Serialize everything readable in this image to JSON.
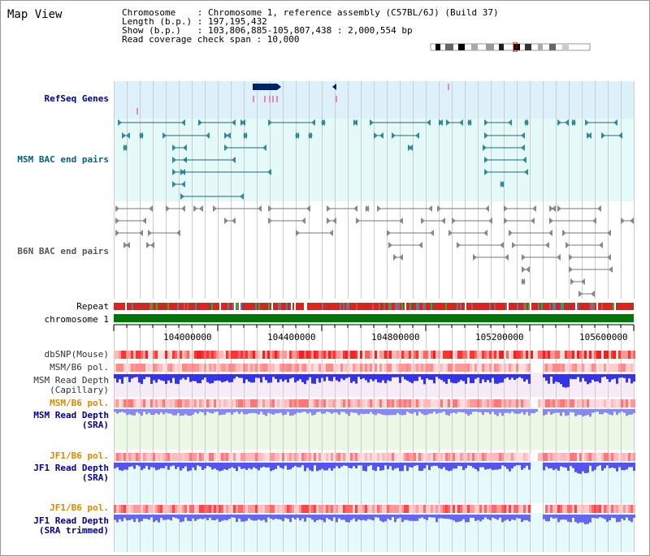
{
  "title": "Map View",
  "header": {
    "lines": [
      "Chromosome    : Chromosome 1, reference assembly (C57BL/6J) (Build 37)",
      "Length (b.p.) : 197,195,432",
      "Show (b.p.)   : 103,806,885-105,807,438 : 2,000,554 bp",
      "Read coverage check span : 10,000"
    ]
  },
  "tracks": {
    "refseq": "RefSeq Genes",
    "msm_bac": "MSM BAC end pairs",
    "b6n_bac": "B6N BAC end pairs",
    "repeat": "Repeat",
    "chromosome": "chromosome 1",
    "dbsnp": "dbSNP(Mouse)",
    "msm_b6_pol_1": "MSM/B6 pol.",
    "msm_depth_cap": "MSM Read Depth\n(Capillary)",
    "msm_b6_pol_2": "MSM/B6 pol.",
    "msm_depth_sra": "MSM Read Depth\n(SRA)",
    "jf1_b6_pol_1": "JF1/B6 pol.",
    "jf1_depth_sra": "JF1 Read Depth\n(SRA)",
    "jf1_b6_pol_2": "JF1/B6 pol.",
    "jf1_depth_trim": "JF1 Read Depth\n(SRA trimmed)"
  },
  "axis": {
    "ticks": [
      "104000000",
      "104400000",
      "104800000",
      "105200000",
      "105600000"
    ]
  },
  "colors": {
    "navy": "#000099",
    "teal": "#006677",
    "gray": "#555555",
    "orange": "#dd8800",
    "refseq_bg": "#ddf1fb",
    "msm_bg": "#e4faf9",
    "msm_depth_bg": "#f5ecf7",
    "msm_sra_bg": "#ebf8e6",
    "jf1_bg": "#e4fafb"
  }
}
